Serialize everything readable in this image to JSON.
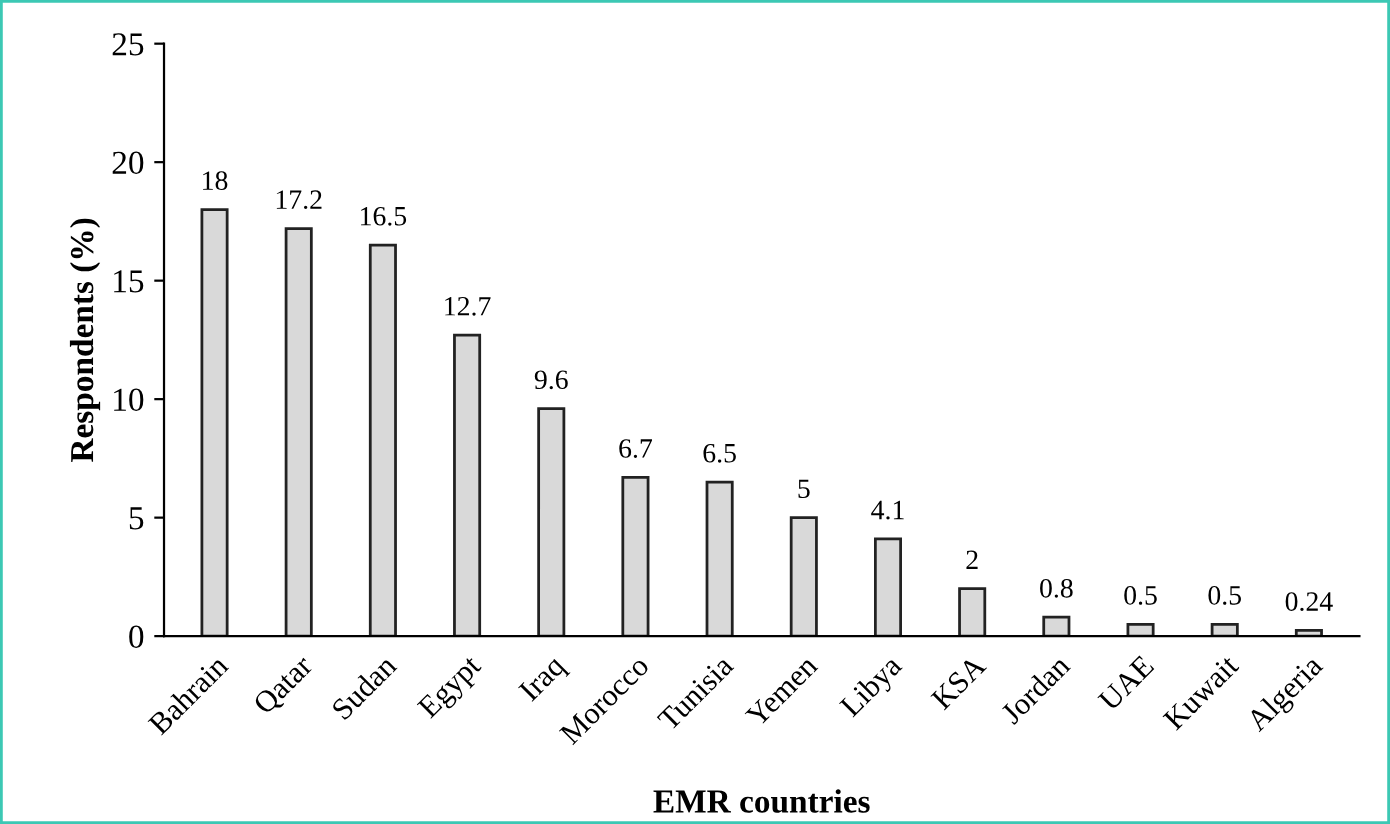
{
  "chart_data": {
    "type": "bar",
    "xlabel": "EMR countries",
    "ylabel": "Respondents (%)",
    "categories": [
      "Bahrain",
      "Qatar",
      "Sudan",
      "Egypt",
      "Iraq",
      "Morocco",
      "Tunisia",
      "Yemen",
      "Libya",
      "KSA",
      "Jordan",
      "UAE",
      "Kuwait",
      "Algeria"
    ],
    "values": [
      18,
      17.2,
      16.5,
      12.7,
      9.6,
      6.7,
      6.5,
      5,
      4.1,
      2,
      0.8,
      0.5,
      0.5,
      0.24
    ],
    "color": "#d9d9d9",
    "ylim": [
      0,
      25
    ],
    "yticks": [
      0,
      5,
      10,
      15,
      20,
      25
    ],
    "grid": false,
    "data_labels": true
  }
}
